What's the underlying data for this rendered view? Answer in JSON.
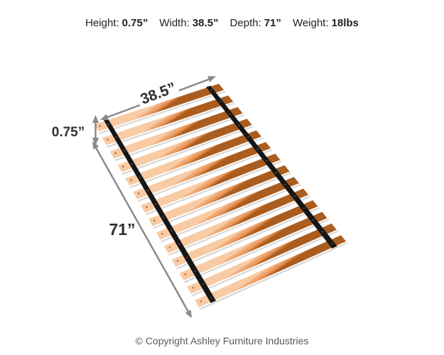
{
  "header": {
    "specs": [
      {
        "label": "Height:",
        "value": "0.75”"
      },
      {
        "label": "Width:",
        "value": "38.5”"
      },
      {
        "label": "Depth:",
        "value": "71”"
      },
      {
        "label": "Weight:",
        "value": "18lbs"
      }
    ]
  },
  "diagram": {
    "type": "dimension-illustration",
    "subject": "wooden bed slat roll with two black straps",
    "slat_count": 14,
    "strap_count": 2,
    "width_label": "38.5”",
    "thickness_label": "0.75”",
    "depth_label": "71”",
    "colors": {
      "arrow": "#8a8a8a",
      "dimension_text": "#322e2b",
      "strap": "#161616",
      "strap_rivet": "#4a4a4a",
      "slat_shadow": "#c7c5c3",
      "slat_hole": "#a3622c",
      "slat_gradient": [
        [
          0,
          "#f8cba4"
        ],
        [
          0.1,
          "#f3b586"
        ],
        [
          0.48,
          "#ea9c62"
        ],
        [
          0.7,
          "#e18c4e"
        ],
        [
          0.74,
          "#cd7a37"
        ],
        [
          0.9,
          "#bc6a28"
        ],
        [
          1,
          "#aa5d1f"
        ]
      ]
    }
  },
  "footer": {
    "copyright": "© Copyright Ashley Furniture Industries"
  }
}
